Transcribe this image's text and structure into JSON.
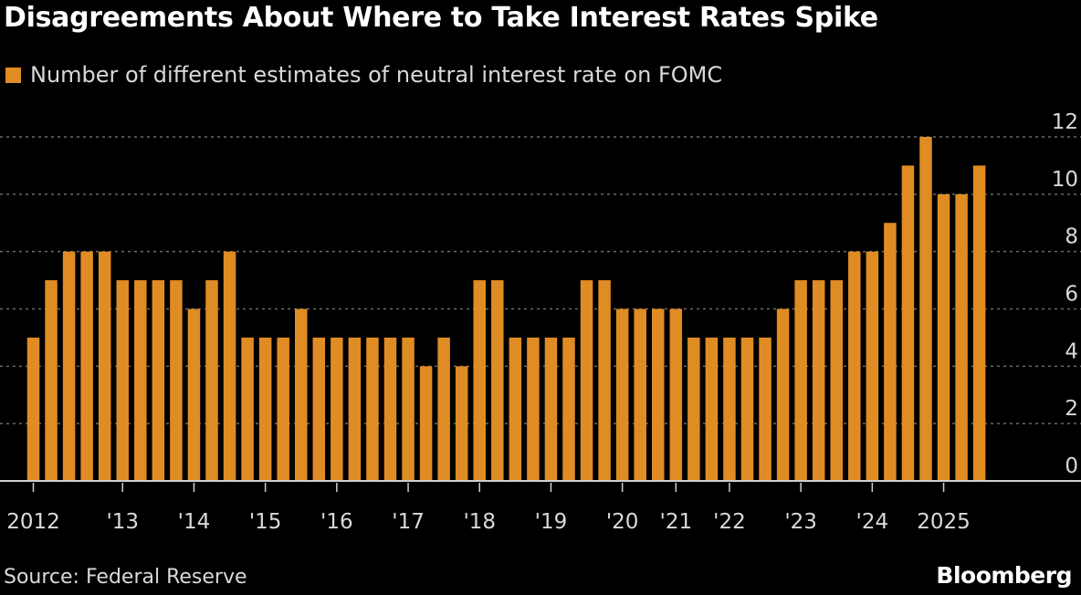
{
  "title": "Disagreements About Where to Take Interest Rates Spike",
  "source": "Source: Federal Reserve",
  "logo": "Bloomberg",
  "colors": {
    "bar": "#e08c24",
    "background": "#000000",
    "grid": "#6a6a6a"
  },
  "chart_data": {
    "type": "bar",
    "title": "Disagreements About Where to Take Interest Rates Spike",
    "series": [
      {
        "name": "Number of different estimates of neutral interest rate on FOMC",
        "values": [
          5,
          7,
          8,
          8,
          8,
          7,
          7,
          7,
          7,
          6,
          7,
          8,
          5,
          5,
          5,
          6,
          5,
          5,
          5,
          5,
          5,
          5,
          4,
          5,
          4,
          7,
          7,
          5,
          5,
          5,
          5,
          7,
          7,
          6,
          6,
          6,
          6,
          5,
          5,
          5,
          5,
          5,
          6,
          7,
          7,
          7,
          8,
          8,
          9,
          11,
          12,
          10,
          10,
          11
        ]
      }
    ],
    "xticks": [
      {
        "label": "2012",
        "bar": 0
      },
      {
        "label": "'13",
        "bar": 5
      },
      {
        "label": "'14",
        "bar": 9
      },
      {
        "label": "'15",
        "bar": 13
      },
      {
        "label": "'16",
        "bar": 17
      },
      {
        "label": "'17",
        "bar": 21
      },
      {
        "label": "'18",
        "bar": 25
      },
      {
        "label": "'19",
        "bar": 29
      },
      {
        "label": "'20",
        "bar": 33
      },
      {
        "label": "'21",
        "bar": 36
      },
      {
        "label": "'22",
        "bar": 39
      },
      {
        "label": "'23",
        "bar": 43
      },
      {
        "label": "'24",
        "bar": 47
      },
      {
        "label": "2025",
        "bar": 51
      }
    ],
    "yticks": [
      "0",
      "2",
      "4",
      "6",
      "8",
      "10",
      "12"
    ],
    "ylim": [
      0,
      12
    ],
    "y_axis_side": "right",
    "grid": "horizontal dotted",
    "legend_placement": "top-left"
  }
}
